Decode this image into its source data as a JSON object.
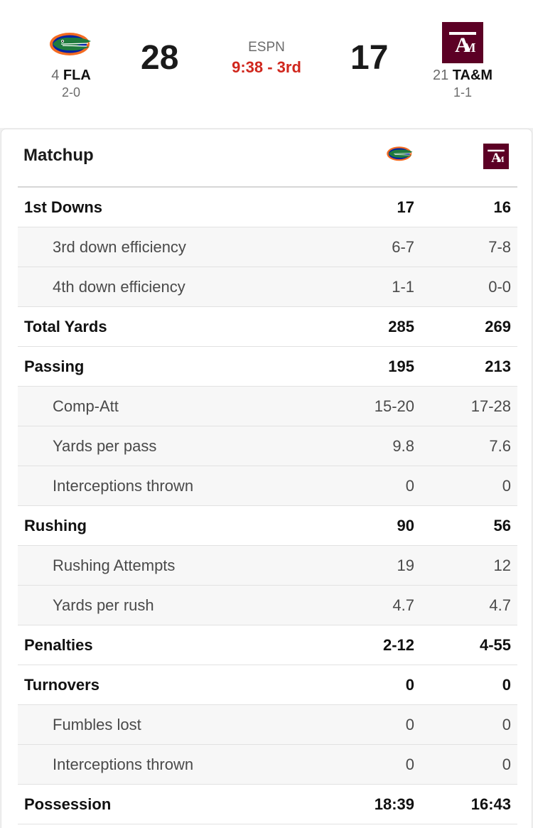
{
  "game": {
    "network": "ESPN",
    "clock": "9:38 - 3rd",
    "home": {
      "rank": "4",
      "abbr": "FLA",
      "record": "2-0",
      "score": "28",
      "logo_icon": "gator-logo-icon",
      "color": "#0021a5"
    },
    "away": {
      "rank": "21",
      "abbr": "TA&M",
      "record": "1-1",
      "score": "17",
      "logo_icon": "atm-logo-icon",
      "color": "#5c0025"
    }
  },
  "matchup": {
    "title": "Matchup",
    "rows": [
      {
        "kind": "main",
        "label": "1st Downs",
        "home": "17",
        "away": "16"
      },
      {
        "kind": "sub",
        "label": "3rd down efficiency",
        "home": "6-7",
        "away": "7-8"
      },
      {
        "kind": "sub",
        "label": "4th down efficiency",
        "home": "1-1",
        "away": "0-0"
      },
      {
        "kind": "main",
        "label": "Total Yards",
        "home": "285",
        "away": "269"
      },
      {
        "kind": "main",
        "label": "Passing",
        "home": "195",
        "away": "213"
      },
      {
        "kind": "sub",
        "label": "Comp-Att",
        "home": "15-20",
        "away": "17-28"
      },
      {
        "kind": "sub",
        "label": "Yards per pass",
        "home": "9.8",
        "away": "7.6"
      },
      {
        "kind": "sub",
        "label": "Interceptions thrown",
        "home": "0",
        "away": "0"
      },
      {
        "kind": "main",
        "label": "Rushing",
        "home": "90",
        "away": "56"
      },
      {
        "kind": "sub",
        "label": "Rushing Attempts",
        "home": "19",
        "away": "12"
      },
      {
        "kind": "sub",
        "label": "Yards per rush",
        "home": "4.7",
        "away": "4.7"
      },
      {
        "kind": "main",
        "label": "Penalties",
        "home": "2-12",
        "away": "4-55"
      },
      {
        "kind": "main",
        "label": "Turnovers",
        "home": "0",
        "away": "0"
      },
      {
        "kind": "sub",
        "label": "Fumbles lost",
        "home": "0",
        "away": "0"
      },
      {
        "kind": "sub",
        "label": "Interceptions thrown",
        "home": "0",
        "away": "0"
      },
      {
        "kind": "main",
        "label": "Possession",
        "home": "18:39",
        "away": "16:43"
      }
    ]
  }
}
